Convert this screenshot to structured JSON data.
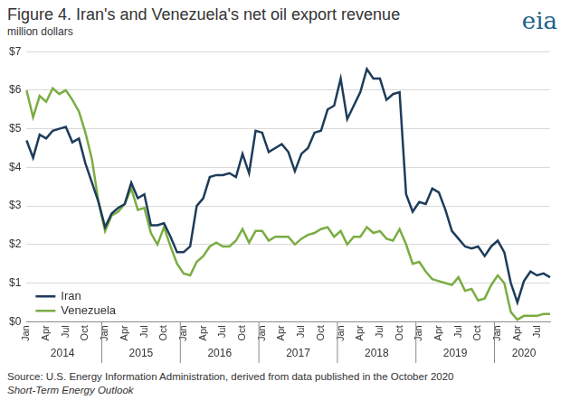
{
  "title": "Figure 4. Iran's and Venezuela's net oil export revenue",
  "logo": "eia",
  "notes": [
    "Source: U.S. Energy Information Administration, derived from data published in the October 2020",
    "Short-Term Energy Outlook"
  ],
  "chart_data": {
    "type": "line",
    "y_label": "million dollars",
    "categories": [
      "Jan",
      null,
      null,
      "Apr",
      null,
      null,
      "Jul",
      null,
      null,
      "Oct",
      null,
      null,
      "Jan",
      null,
      null,
      "Apr",
      null,
      null,
      "Jul",
      null,
      null,
      "Oct",
      null,
      null,
      "Jan",
      null,
      null,
      "Apr",
      null,
      null,
      "Jul",
      null,
      null,
      "Oct",
      null,
      null,
      "Jan",
      null,
      null,
      "Apr",
      null,
      null,
      "Jul",
      null,
      null,
      "Oct",
      null,
      null,
      "Jan",
      null,
      null,
      "Apr",
      null,
      null,
      "Jul",
      null,
      null,
      "Oct",
      null,
      null,
      "Jan",
      null,
      null,
      "Apr",
      null,
      null,
      "Jul",
      null,
      null,
      "Oct",
      null,
      null,
      "Jan",
      null,
      null,
      "Apr",
      null,
      null,
      "Jul",
      null,
      null
    ],
    "x_groups": [
      "2014",
      "2014",
      "2014",
      "2014",
      "2014",
      "2014",
      "2014",
      "2014",
      "2014",
      "2014",
      "2014",
      "2014",
      "2015",
      "2015",
      "2015",
      "2015",
      "2015",
      "2015",
      "2015",
      "2015",
      "2015",
      "2015",
      "2015",
      "2015",
      "2016",
      "2016",
      "2016",
      "2016",
      "2016",
      "2016",
      "2016",
      "2016",
      "2016",
      "2016",
      "2016",
      "2016",
      "2017",
      "2017",
      "2017",
      "2017",
      "2017",
      "2017",
      "2017",
      "2017",
      "2017",
      "2017",
      "2017",
      "2017",
      "2018",
      "2018",
      "2018",
      "2018",
      "2018",
      "2018",
      "2018",
      "2018",
      "2018",
      "2018",
      "2018",
      "2018",
      "2019",
      "2019",
      "2019",
      "2019",
      "2019",
      "2019",
      "2019",
      "2019",
      "2019",
      "2019",
      "2019",
      "2019",
      "2020",
      "2020",
      "2020",
      "2020",
      "2020",
      "2020",
      "2020",
      "2020",
      "2020"
    ],
    "series": [
      {
        "name": "Iran",
        "color": "#1d3c5a",
        "values": [
          4.7,
          4.25,
          4.85,
          4.75,
          4.95,
          5.0,
          5.05,
          4.65,
          4.75,
          4.1,
          3.6,
          3.1,
          2.45,
          2.8,
          2.95,
          3.05,
          3.6,
          3.2,
          3.3,
          2.5,
          2.5,
          2.55,
          2.2,
          1.8,
          1.8,
          1.95,
          3.0,
          3.2,
          3.75,
          3.8,
          3.8,
          3.85,
          3.75,
          4.35,
          3.85,
          4.95,
          4.9,
          4.4,
          4.5,
          4.6,
          4.4,
          3.9,
          4.35,
          4.5,
          4.9,
          4.95,
          5.5,
          5.6,
          6.3,
          5.25,
          5.6,
          5.95,
          6.55,
          6.3,
          6.3,
          5.75,
          5.9,
          5.95,
          3.3,
          2.85,
          3.1,
          3.05,
          3.45,
          3.35,
          2.9,
          2.35,
          2.15,
          1.95,
          1.9,
          1.95,
          1.7,
          1.95,
          2.1,
          1.8,
          1.0,
          0.5,
          1.05,
          1.3,
          1.2,
          1.25,
          1.15
        ]
      },
      {
        "name": "Venezuela",
        "color": "#7aad42",
        "values": [
          6.0,
          5.3,
          5.85,
          5.7,
          6.05,
          5.9,
          6.0,
          5.75,
          5.45,
          4.9,
          4.2,
          3.1,
          2.35,
          2.75,
          2.85,
          3.05,
          3.45,
          2.9,
          2.95,
          2.3,
          2.0,
          2.45,
          1.95,
          1.5,
          1.25,
          1.2,
          1.55,
          1.7,
          1.95,
          2.05,
          1.95,
          1.95,
          2.1,
          2.4,
          2.05,
          2.35,
          2.35,
          2.1,
          2.2,
          2.2,
          2.2,
          2.0,
          2.15,
          2.25,
          2.3,
          2.4,
          2.45,
          2.2,
          2.35,
          2.0,
          2.2,
          2.2,
          2.45,
          2.3,
          2.35,
          2.15,
          2.1,
          2.4,
          2.0,
          1.5,
          1.55,
          1.3,
          1.1,
          1.05,
          1.0,
          0.95,
          1.15,
          0.8,
          0.85,
          0.55,
          0.6,
          0.95,
          1.2,
          1.0,
          0.25,
          0.05,
          0.15,
          0.15,
          0.15,
          0.2,
          0.2
        ]
      }
    ],
    "ylim": [
      0,
      7
    ],
    "yticks": [
      {
        "value": 0,
        "label": "$0"
      },
      {
        "value": 1,
        "label": "$1"
      },
      {
        "value": 2,
        "label": "$2"
      },
      {
        "value": 3,
        "label": "$3"
      },
      {
        "value": 4,
        "label": "$4"
      },
      {
        "value": 5,
        "label": "$5"
      },
      {
        "value": 6,
        "label": "$6"
      },
      {
        "value": 7,
        "label": "$7"
      }
    ],
    "grid": true,
    "legend": "lower left"
  }
}
